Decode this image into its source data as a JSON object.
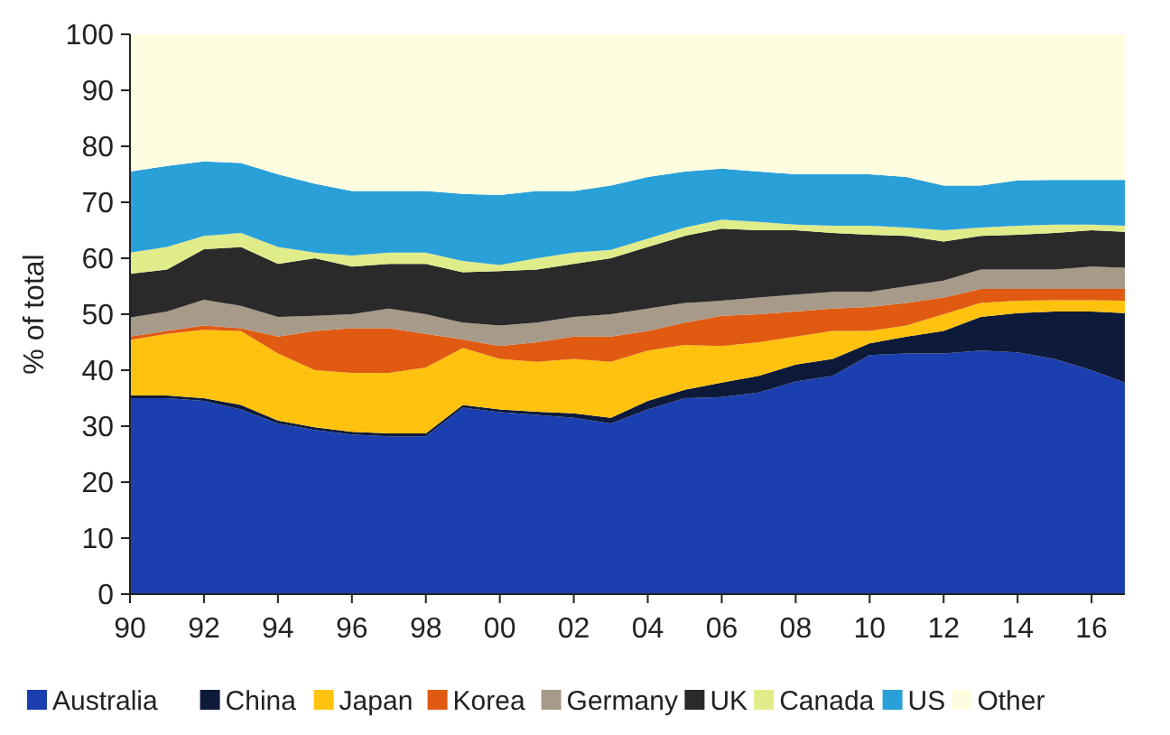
{
  "chart_data": {
    "type": "area",
    "stacked": true,
    "ylabel": "% of total",
    "x": [
      1990,
      1991,
      1992,
      1993,
      1994,
      1995,
      1996,
      1997,
      1998,
      1999,
      2000,
      2001,
      2002,
      2003,
      2004,
      2005,
      2006,
      2007,
      2008,
      2009,
      2010,
      2011,
      2012,
      2013,
      2014,
      2015,
      2016,
      2016.9
    ],
    "xlim": [
      1990,
      2016.9
    ],
    "xticks": [
      {
        "value": 1990,
        "label": "90"
      },
      {
        "value": 1992,
        "label": "92"
      },
      {
        "value": 1994,
        "label": "94"
      },
      {
        "value": 1996,
        "label": "96"
      },
      {
        "value": 1998,
        "label": "98"
      },
      {
        "value": 2000,
        "label": "00"
      },
      {
        "value": 2002,
        "label": "02"
      },
      {
        "value": 2004,
        "label": "04"
      },
      {
        "value": 2006,
        "label": "06"
      },
      {
        "value": 2008,
        "label": "08"
      },
      {
        "value": 2010,
        "label": "10"
      },
      {
        "value": 2012,
        "label": "12"
      },
      {
        "value": 2014,
        "label": "14"
      },
      {
        "value": 2016,
        "label": "16"
      }
    ],
    "ylim": [
      0,
      100
    ],
    "yticks": [
      0,
      10,
      20,
      30,
      40,
      50,
      60,
      70,
      80,
      90,
      100
    ],
    "grid": false,
    "legend": "bottom",
    "series": [
      {
        "name": "Australia",
        "color": "#1c3fb0",
        "values": [
          35,
          35,
          34.5,
          33,
          30.5,
          29.3,
          28.5,
          28.2,
          28.2,
          33.3,
          32.5,
          32,
          31.5,
          30.5,
          33,
          35,
          35.2,
          36,
          38,
          39,
          42.7,
          43,
          43,
          43.5,
          43.2,
          42,
          40,
          37.8
        ]
      },
      {
        "name": "China",
        "color": "#0d1a3a",
        "values": [
          0.5,
          0.5,
          0.5,
          0.8,
          0.5,
          0.5,
          0.5,
          0.5,
          0.5,
          0.5,
          0.5,
          0.6,
          0.8,
          1,
          1.5,
          1.5,
          2.6,
          3,
          3,
          3,
          2.1,
          3,
          4,
          6,
          7,
          8.5,
          10.5,
          12.4
        ]
      },
      {
        "name": "Japan",
        "color": "#ffc20e",
        "values": [
          9.9,
          11,
          12.2,
          13.2,
          12,
          10.2,
          10.5,
          10.8,
          11.8,
          10.2,
          9,
          8.9,
          9.7,
          10,
          9,
          8,
          6.5,
          6,
          5,
          5,
          2.2,
          2,
          3,
          2.5,
          2.2,
          2,
          2,
          2.2
        ]
      },
      {
        "name": "Korea",
        "color": "#e05a12",
        "values": [
          0.6,
          0.5,
          0.8,
          0.5,
          3,
          7,
          8,
          8,
          6,
          1.5,
          2.3,
          3.5,
          4,
          4.5,
          3.5,
          4,
          5.4,
          5,
          4.5,
          4,
          4.3,
          4,
          3,
          2.5,
          2.1,
          2,
          2,
          2.1
        ]
      },
      {
        "name": "Germany",
        "color": "#a89a88",
        "values": [
          3.4,
          3.5,
          4.6,
          4,
          3.5,
          2.7,
          2.5,
          3.5,
          3.5,
          3,
          3.7,
          3.5,
          3.5,
          4,
          4,
          3.5,
          2.7,
          3,
          3,
          3,
          2.7,
          3,
          3,
          3.5,
          3.5,
          3.5,
          4,
          3.8
        ]
      },
      {
        "name": "UK",
        "color": "#2a2a2a",
        "values": [
          7.8,
          7.5,
          9,
          10.5,
          9.5,
          10.3,
          8.5,
          8,
          9,
          9,
          9.7,
          9.5,
          9.5,
          10,
          11,
          12,
          12.9,
          12,
          11.5,
          10.5,
          10.2,
          9,
          7,
          6,
          6.2,
          6.5,
          6.5,
          6.4
        ]
      },
      {
        "name": "Canada",
        "color": "#e0ec8a",
        "values": [
          3.8,
          4,
          2.4,
          2.5,
          3,
          1,
          2,
          2,
          2,
          2,
          1.1,
          2,
          2,
          1.5,
          1.5,
          1.5,
          1.6,
          1.5,
          1,
          1.3,
          1.6,
          1.5,
          2,
          1.5,
          1.6,
          1.5,
          1,
          1.1
        ]
      },
      {
        "name": "US",
        "color": "#2aa0d8",
        "values": [
          14.5,
          14.5,
          13.3,
          12.5,
          13,
          12.3,
          11.5,
          11,
          11,
          12,
          12.5,
          12,
          11,
          11.5,
          11,
          10,
          9.1,
          9,
          9,
          9.2,
          9.2,
          9,
          8,
          7.5,
          8.1,
          8,
          8,
          8.2
        ]
      },
      {
        "name": "Other",
        "color": "#fffde0",
        "values": [
          24.5,
          23.5,
          22.7,
          23,
          25,
          26.7,
          28,
          28,
          28,
          28.5,
          28.7,
          28,
          28,
          27,
          25.5,
          24.5,
          24,
          24.5,
          25,
          25,
          25,
          25.5,
          27,
          27,
          26.1,
          26,
          26,
          26
        ]
      }
    ]
  }
}
